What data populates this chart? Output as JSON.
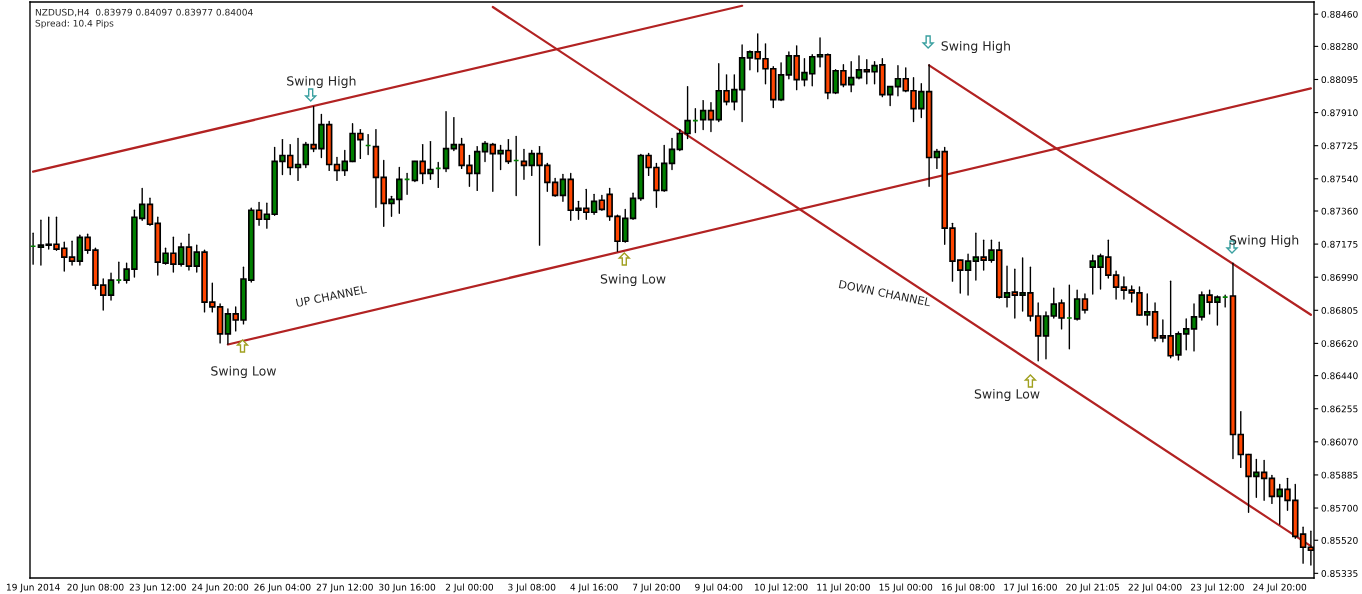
{
  "chart_data": {
    "type": "candlestick",
    "categories": [
      "19 Jun 2014",
      null,
      null,
      null,
      null,
      null,
      null,
      null,
      "20 Jun 08:00",
      null,
      null,
      null,
      null,
      null,
      null,
      null,
      "23 Jun 12:00",
      null,
      null,
      null,
      null,
      null,
      null,
      null,
      "24 Jun 20:00",
      null,
      null,
      null,
      null,
      null,
      null,
      null,
      "26 Jun 04:00",
      null,
      null,
      null,
      null,
      null,
      null,
      null,
      "27 Jun 12:00",
      null,
      null,
      null,
      null,
      null,
      null,
      null,
      "30 Jun 16:00",
      null,
      null,
      null,
      null,
      null,
      null,
      null,
      "2 Jul 00:00",
      null,
      null,
      null,
      null,
      null,
      null,
      null,
      "3 Jul 08:00",
      null,
      null,
      null,
      null,
      null,
      null,
      null,
      "4 Jul 16:00",
      null,
      null,
      null,
      null,
      null,
      null,
      null,
      "7 Jul 20:00",
      null,
      null,
      null,
      null,
      null,
      null,
      null,
      "9 Jul 04:00",
      null,
      null,
      null,
      null,
      null,
      null,
      null,
      "10 Jul 12:00",
      null,
      null,
      null,
      null,
      null,
      null,
      null,
      "11 Jul 20:00",
      null,
      null,
      null,
      null,
      null,
      null,
      null,
      "15 Jul 00:00",
      null,
      null,
      null,
      null,
      null,
      null,
      null,
      "16 Jul 08:00",
      null,
      null,
      null,
      null,
      null,
      null,
      null,
      "17 Jul 16:00",
      null,
      null,
      null,
      null,
      null,
      null,
      null,
      "20 Jul 21:05",
      null,
      null,
      null,
      null,
      null,
      null,
      null,
      "22 Jul 04:00",
      null,
      null,
      null,
      null,
      null,
      null,
      null,
      "23 Jul 12:00",
      null,
      null,
      null,
      null,
      null,
      null,
      null,
      "24 Jul 20:00",
      null,
      null,
      null,
      null
    ],
    "ohlc": [
      [
        0.87163,
        0.87236,
        0.87063,
        0.87163
      ],
      [
        0.87158,
        0.87308,
        0.87058,
        0.87169
      ],
      [
        0.87169,
        0.87325,
        0.87147,
        0.87174
      ],
      [
        0.87174,
        0.87325,
        0.87141,
        0.87147
      ],
      [
        0.87152,
        0.87186,
        0.87024,
        0.87102
      ],
      [
        0.87102,
        0.87191,
        0.87058,
        0.8708
      ],
      [
        0.8708,
        0.87225,
        0.87058,
        0.87213
      ],
      [
        0.87213,
        0.8723,
        0.87124,
        0.87141
      ],
      [
        0.87141,
        0.87152,
        0.86924,
        0.86946
      ],
      [
        0.86946,
        0.8698,
        0.86807,
        0.8689
      ],
      [
        0.8689,
        0.87013,
        0.86863,
        0.86974
      ],
      [
        0.86974,
        0.87074,
        0.86957,
        0.86974
      ],
      [
        0.86974,
        0.87069,
        0.86957,
        0.87035
      ],
      [
        0.87035,
        0.87364,
        0.86991,
        0.87325
      ],
      [
        0.87319,
        0.87486,
        0.87308,
        0.87397
      ],
      [
        0.87397,
        0.87431,
        0.8728,
        0.87286
      ],
      [
        0.87291,
        0.87325,
        0.87002,
        0.87074
      ],
      [
        0.87069,
        0.87152,
        0.87063,
        0.87124
      ],
      [
        0.87124,
        0.87213,
        0.87019,
        0.87063
      ],
      [
        0.87063,
        0.8718,
        0.87052,
        0.87158
      ],
      [
        0.87158,
        0.8723,
        0.8703,
        0.87052
      ],
      [
        0.87052,
        0.87169,
        0.87019,
        0.8713
      ],
      [
        0.8713,
        0.87141,
        0.86796,
        0.86851
      ],
      [
        0.86851,
        0.86957,
        0.86796,
        0.86824
      ],
      [
        0.86824,
        0.8684,
        0.86623,
        0.86673
      ],
      [
        0.86673,
        0.86812,
        0.86617,
        0.86785
      ],
      [
        0.86785,
        0.86824,
        0.8669,
        0.86751
      ],
      [
        0.86751,
        0.87046,
        0.86729,
        0.8698
      ],
      [
        0.86974,
        0.87375,
        0.86963,
        0.87364
      ],
      [
        0.87364,
        0.87408,
        0.8728,
        0.87314
      ],
      [
        0.87314,
        0.87403,
        0.87264,
        0.87342
      ],
      [
        0.87342,
        0.87715,
        0.87336,
        0.87637
      ],
      [
        0.87637,
        0.87759,
        0.87564,
        0.8767
      ],
      [
        0.8767,
        0.87731,
        0.87564,
        0.87603
      ],
      [
        0.87603,
        0.87765,
        0.87531,
        0.8762
      ],
      [
        0.8762,
        0.87743,
        0.87603,
        0.87731
      ],
      [
        0.87731,
        0.87943,
        0.87692,
        0.87709
      ],
      [
        0.87709,
        0.87899,
        0.87659,
        0.87843
      ],
      [
        0.87843,
        0.8786,
        0.87587,
        0.8762
      ],
      [
        0.8762,
        0.87659,
        0.87531,
        0.87587
      ],
      [
        0.87587,
        0.87698,
        0.87559,
        0.87637
      ],
      [
        0.87637,
        0.87848,
        0.87637,
        0.87793
      ],
      [
        0.87793,
        0.87815,
        0.87654,
        0.87759
      ],
      [
        0.87726,
        0.87787,
        0.87676,
        0.87726
      ],
      [
        0.8772,
        0.87815,
        0.87381,
        0.87548
      ],
      [
        0.87548,
        0.87642,
        0.87275,
        0.87403
      ],
      [
        0.87403,
        0.87442,
        0.8733,
        0.87425
      ],
      [
        0.87425,
        0.87603,
        0.87347,
        0.87537
      ],
      [
        0.87537,
        0.8757,
        0.87453,
        0.87537
      ],
      [
        0.87531,
        0.87637,
        0.87525,
        0.87637
      ],
      [
        0.87637,
        0.87731,
        0.87514,
        0.8757
      ],
      [
        0.8757,
        0.87748,
        0.87537,
        0.87592
      ],
      [
        0.87598,
        0.87631,
        0.87492,
        0.87598
      ],
      [
        0.87598,
        0.87915,
        0.87581,
        0.87709
      ],
      [
        0.87709,
        0.87882,
        0.87698,
        0.87731
      ],
      [
        0.87731,
        0.87765,
        0.87598,
        0.87615
      ],
      [
        0.87615,
        0.8767,
        0.87498,
        0.8757
      ],
      [
        0.8757,
        0.8772,
        0.87475,
        0.87692
      ],
      [
        0.87692,
        0.87748,
        0.87637,
        0.87737
      ],
      [
        0.87731,
        0.87737,
        0.8747,
        0.87681
      ],
      [
        0.87681,
        0.87726,
        0.87592,
        0.87698
      ],
      [
        0.87698,
        0.87759,
        0.87626,
        0.87637
      ],
      [
        0.87642,
        0.87776,
        0.87447,
        0.87642
      ],
      [
        0.87637,
        0.87704,
        0.87537,
        0.87615
      ],
      [
        0.87615,
        0.87698,
        0.87559,
        0.87681
      ],
      [
        0.87681,
        0.8772,
        0.87169,
        0.87615
      ],
      [
        0.87615,
        0.87626,
        0.8747,
        0.8752
      ],
      [
        0.8752,
        0.87542,
        0.87442,
        0.87447
      ],
      [
        0.87447,
        0.87564,
        0.87414,
        0.87537
      ],
      [
        0.87537,
        0.8757,
        0.87308,
        0.87364
      ],
      [
        0.87364,
        0.87414,
        0.87314,
        0.87375
      ],
      [
        0.87375,
        0.87481,
        0.87314,
        0.87353
      ],
      [
        0.87353,
        0.87453,
        0.87342,
        0.87414
      ],
      [
        0.8742,
        0.87447,
        0.87364,
        0.87369
      ],
      [
        0.87453,
        0.87486,
        0.87308,
        0.8733
      ],
      [
        0.8733,
        0.87336,
        0.87135,
        0.87191
      ],
      [
        0.87191,
        0.87369,
        0.87186,
        0.87319
      ],
      [
        0.87319,
        0.87459,
        0.87314,
        0.87431
      ],
      [
        0.87431,
        0.87676,
        0.8742,
        0.8767
      ],
      [
        0.8767,
        0.87681,
        0.87559,
        0.87603
      ],
      [
        0.87603,
        0.87626,
        0.87381,
        0.87475
      ],
      [
        0.87475,
        0.87726,
        0.8747,
        0.87626
      ],
      [
        0.87626,
        0.87765,
        0.87592,
        0.87704
      ],
      [
        0.87704,
        0.87815,
        0.87698,
        0.87793
      ],
      [
        0.87793,
        0.88055,
        0.87765,
        0.87865
      ],
      [
        0.87865,
        0.87932,
        0.87798,
        0.87865
      ],
      [
        0.87871,
        0.87977,
        0.87815,
        0.87921
      ],
      [
        0.87921,
        0.87965,
        0.87804,
        0.87871
      ],
      [
        0.87871,
        0.88183,
        0.8786,
        0.88032
      ],
      [
        0.88032,
        0.88121,
        0.87954,
        0.87971
      ],
      [
        0.87971,
        0.88121,
        0.87926,
        0.88038
      ],
      [
        0.88038,
        0.88288,
        0.8786,
        0.88216
      ],
      [
        0.88216,
        0.88255,
        0.88149,
        0.88249
      ],
      [
        0.88249,
        0.8835,
        0.88138,
        0.88211
      ],
      [
        0.88211,
        0.88294,
        0.88071,
        0.88155
      ],
      [
        0.88155,
        0.88166,
        0.87938,
        0.87982
      ],
      [
        0.87982,
        0.88188,
        0.87977,
        0.88121
      ],
      [
        0.88121,
        0.88249,
        0.88099,
        0.88227
      ],
      [
        0.88227,
        0.88283,
        0.88038,
        0.88094
      ],
      [
        0.88094,
        0.88211,
        0.8806,
        0.88133
      ],
      [
        0.88127,
        0.88233,
        0.8806,
        0.88222
      ],
      [
        0.88222,
        0.88327,
        0.88166,
        0.88233
      ],
      [
        0.88233,
        0.88238,
        0.87988,
        0.88021
      ],
      [
        0.88021,
        0.88149,
        0.88016,
        0.88144
      ],
      [
        0.88144,
        0.88177,
        0.88055,
        0.88066
      ],
      [
        0.88066,
        0.88194,
        0.88027,
        0.88105
      ],
      [
        0.88105,
        0.88227,
        0.88099,
        0.88149
      ],
      [
        0.88149,
        0.88205,
        0.88071,
        0.88138
      ],
      [
        0.88138,
        0.88194,
        0.88071,
        0.88172
      ],
      [
        0.88177,
        0.88211,
        0.87999,
        0.8801
      ],
      [
        0.8801,
        0.88055,
        0.87949,
        0.88055
      ],
      [
        0.88055,
        0.88172,
        0.88004,
        0.88099
      ],
      [
        0.88099,
        0.8816,
        0.88027,
        0.88032
      ],
      [
        0.88032,
        0.88105,
        0.8786,
        0.87932
      ],
      [
        0.87932,
        0.88071,
        0.87882,
        0.88027
      ],
      [
        0.88027,
        0.88177,
        0.87498,
        0.87659
      ],
      [
        0.87659,
        0.87704,
        0.87598,
        0.87692
      ],
      [
        0.87692,
        0.87715,
        0.87174,
        0.87264
      ],
      [
        0.87264,
        0.87291,
        0.86968,
        0.8708
      ],
      [
        0.87085,
        0.87085,
        0.86902,
        0.8703
      ],
      [
        0.8703,
        0.87119,
        0.8689,
        0.8708
      ],
      [
        0.8708,
        0.87236,
        0.86974,
        0.87102
      ],
      [
        0.87102,
        0.87197,
        0.8703,
        0.87085
      ],
      [
        0.87085,
        0.87197,
        0.87074,
        0.87141
      ],
      [
        0.87141,
        0.87186,
        0.86874,
        0.86879
      ],
      [
        0.86879,
        0.87052,
        0.86824,
        0.86902
      ],
      [
        0.86907,
        0.87035,
        0.86762,
        0.8689
      ],
      [
        0.8689,
        0.87097,
        0.86801,
        0.86902
      ],
      [
        0.86902,
        0.87046,
        0.86746,
        0.86773
      ],
      [
        0.86773,
        0.86846,
        0.86523,
        0.86662
      ],
      [
        0.86662,
        0.86796,
        0.86534,
        0.86773
      ],
      [
        0.86773,
        0.86929,
        0.86762,
        0.8684
      ],
      [
        0.86846,
        0.86863,
        0.86701,
        0.86762
      ],
      [
        0.86762,
        0.86946,
        0.8659,
        0.86762
      ],
      [
        0.86757,
        0.86918,
        0.86751,
        0.86868
      ],
      [
        0.86868,
        0.86896,
        0.8679,
        0.86807
      ],
      [
        0.87046,
        0.87113,
        0.86896,
        0.8708
      ],
      [
        0.87046,
        0.87119,
        0.86924,
        0.87108
      ],
      [
        0.87102,
        0.87197,
        0.86985,
        0.87002
      ],
      [
        0.87002,
        0.87024,
        0.86868,
        0.86935
      ],
      [
        0.86935,
        0.86991,
        0.86868,
        0.86918
      ],
      [
        0.86918,
        0.86941,
        0.86851,
        0.86902
      ],
      [
        0.86902,
        0.86935,
        0.86779,
        0.86779
      ],
      [
        0.86779,
        0.86896,
        0.86723,
        0.86796
      ],
      [
        0.86796,
        0.86846,
        0.86634,
        0.86651
      ],
      [
        0.86662,
        0.86751,
        0.86629,
        0.86651
      ],
      [
        0.86662,
        0.86968,
        0.8654,
        0.86551
      ],
      [
        0.86556,
        0.86684,
        0.86528,
        0.86673
      ],
      [
        0.86673,
        0.86757,
        0.86584,
        0.86701
      ],
      [
        0.86701,
        0.8684,
        0.86578,
        0.86768
      ],
      [
        0.86768,
        0.86907,
        0.86751,
        0.8689
      ],
      [
        0.8689,
        0.86918,
        0.86785,
        0.86851
      ],
      [
        0.86851,
        0.86885,
        0.86723,
        0.86879
      ],
      [
        0.86879,
        0.8689,
        0.86824,
        0.86879
      ],
      [
        0.86885,
        0.87069,
        0.85977,
        0.86111
      ],
      [
        0.86111,
        0.86239,
        0.85927,
        0.85999
      ],
      [
        0.85999,
        0.85999,
        0.85676,
        0.85877
      ],
      [
        0.85877,
        0.85971,
        0.8576,
        0.85899
      ],
      [
        0.85899,
        0.85966,
        0.85743,
        0.85866
      ],
      [
        0.85866,
        0.85882,
        0.85726,
        0.85765
      ],
      [
        0.85765,
        0.85832,
        0.85609,
        0.85804
      ],
      [
        0.85804,
        0.85866,
        0.85687,
        0.85743
      ],
      [
        0.85743,
        0.85832,
        0.85531,
        0.85542
      ],
      [
        0.85554,
        0.85593,
        0.85392,
        0.85481
      ],
      [
        0.85481,
        0.8557,
        0.85381,
        0.85464
      ]
    ],
    "colors": [
      "#008000",
      "#008000",
      "#008000",
      "#ff4500",
      "#ff4500",
      "#ff4500",
      "#008000",
      "#ff4500",
      "#ff4500",
      "#ff4500",
      "#008000",
      "#008000",
      "#008000",
      "#008000",
      "#008000",
      "#ff4500",
      "#ff4500",
      "#008000",
      "#ff4500",
      "#008000",
      "#ff4500",
      "#008000",
      "#ff4500",
      "#ff4500",
      "#ff4500",
      "#008000",
      "#ff4500",
      "#008000",
      "#008000",
      "#ff4500",
      "#008000",
      "#008000",
      "#008000",
      "#ff4500",
      "#008000",
      "#008000",
      "#ff4500",
      "#008000",
      "#ff4500",
      "#ff4500",
      "#008000",
      "#008000",
      "#ff4500",
      "#008000",
      "#ff4500",
      "#ff4500",
      "#008000",
      "#008000",
      "#008000",
      "#008000",
      "#ff4500",
      "#008000",
      "#008000",
      "#008000",
      "#008000",
      "#ff4500",
      "#ff4500",
      "#008000",
      "#008000",
      "#ff4500",
      "#008000",
      "#ff4500",
      "#008000",
      "#ff4500",
      "#008000",
      "#ff4500",
      "#ff4500",
      "#ff4500",
      "#008000",
      "#ff4500",
      "#008000",
      "#ff4500",
      "#008000",
      "#ff4500",
      "#ff4500",
      "#ff4500",
      "#008000",
      "#008000",
      "#008000",
      "#ff4500",
      "#ff4500",
      "#008000",
      "#008000",
      "#008000",
      "#008000",
      "#008000",
      "#008000",
      "#ff4500",
      "#008000",
      "#ff4500",
      "#008000",
      "#008000",
      "#008000",
      "#ff4500",
      "#ff4500",
      "#ff4500",
      "#008000",
      "#008000",
      "#ff4500",
      "#008000",
      "#008000",
      "#008000",
      "#ff4500",
      "#008000",
      "#ff4500",
      "#008000",
      "#008000",
      "#ff4500",
      "#008000",
      "#ff4500",
      "#008000",
      "#008000",
      "#ff4500",
      "#ff4500",
      "#008000",
      "#ff4500",
      "#008000",
      "#ff4500",
      "#ff4500",
      "#ff4500",
      "#008000",
      "#008000",
      "#ff4500",
      "#008000",
      "#ff4500",
      "#008000",
      "#ff4500",
      "#008000",
      "#ff4500",
      "#ff4500",
      "#008000",
      "#008000",
      "#ff4500",
      "#008000",
      "#008000",
      "#ff4500",
      "#008000",
      "#008000",
      "#ff4500",
      "#ff4500",
      "#ff4500",
      "#ff4500",
      "#ff4500",
      "#008000",
      "#ff4500",
      "#ff4500",
      "#ff4500",
      "#008000",
      "#008000",
      "#008000",
      "#008000",
      "#ff4500",
      "#008000",
      "#008000",
      "#ff4500",
      "#ff4500",
      "#ff4500",
      "#008000",
      "#ff4500",
      "#ff4500",
      "#008000",
      "#ff4500",
      "#ff4500",
      "#ff4500",
      "#ff4500"
    ],
    "series": [
      {
        "type": "line",
        "color": "#b22222",
        "values": [
          0.8758,
          null,
          null,
          null,
          null,
          null,
          null,
          null,
          null,
          null,
          null,
          null,
          null,
          null,
          null,
          null,
          null,
          null,
          null,
          null,
          null,
          null,
          null,
          null,
          null,
          null,
          null,
          null,
          null,
          null,
          null,
          null,
          null,
          null,
          null,
          null,
          null,
          null,
          null,
          null,
          null,
          null,
          null,
          null,
          null,
          null,
          null,
          null,
          null,
          null,
          null,
          null,
          null,
          null,
          null,
          null,
          null,
          null,
          null,
          null,
          null,
          null,
          null,
          null,
          null,
          null,
          null,
          null,
          null,
          null,
          null,
          null,
          null,
          null,
          null,
          null,
          null,
          null,
          null,
          null,
          null,
          null,
          null,
          null,
          null,
          null,
          null,
          null,
          null,
          null,
          null,
          0.88507,
          null,
          null,
          null,
          null,
          null,
          null,
          null,
          null,
          null,
          null,
          null,
          null,
          null,
          null,
          null,
          null,
          null,
          null,
          null,
          null,
          null,
          null,
          null,
          null,
          null,
          null,
          null,
          null,
          null,
          null,
          null,
          null,
          null,
          null,
          null,
          null,
          null,
          null,
          null,
          null,
          null,
          null,
          null,
          null,
          null,
          null,
          null,
          null,
          null,
          null,
          null,
          null,
          null,
          null,
          null,
          null,
          null,
          null,
          null,
          null,
          null,
          null,
          null,
          null,
          null,
          null,
          null,
          null,
          null,
          null,
          null,
          null,
          null
        ]
      },
      {
        "type": "line",
        "color": "#b22222",
        "values": [
          null,
          null,
          null,
          null,
          null,
          null,
          null,
          null,
          null,
          null,
          null,
          null,
          null,
          null,
          null,
          null,
          null,
          null,
          null,
          null,
          null,
          null,
          null,
          null,
          null,
          0.86614,
          null,
          null,
          null,
          null,
          null,
          null,
          null,
          null,
          null,
          null,
          null,
          null,
          null,
          null,
          null,
          null,
          null,
          null,
          null,
          null,
          null,
          null,
          null,
          null,
          null,
          null,
          null,
          null,
          null,
          null,
          null,
          null,
          null,
          null,
          null,
          null,
          null,
          null,
          null,
          null,
          null,
          null,
          null,
          null,
          null,
          null,
          null,
          null,
          null,
          null,
          null,
          null,
          null,
          null,
          null,
          null,
          null,
          null,
          null,
          null,
          null,
          null,
          null,
          null,
          null,
          null,
          null,
          null,
          null,
          null,
          null,
          null,
          null,
          null,
          null,
          null,
          null,
          null,
          null,
          null,
          null,
          null,
          null,
          null,
          null,
          null,
          null,
          null,
          null,
          null,
          null,
          null,
          null,
          null,
          null,
          null,
          null,
          null,
          null,
          null,
          null,
          null,
          null,
          null,
          null,
          null,
          null,
          null,
          null,
          null,
          null,
          null,
          null,
          null,
          null,
          null,
          null,
          null,
          null,
          null,
          null,
          null,
          null,
          null,
          null,
          null,
          null,
          null,
          null,
          null,
          null,
          null,
          null,
          null,
          null,
          null,
          null,
          null,
          0.88045
        ]
      },
      {
        "type": "line",
        "color": "#b22222",
        "values": [
          null,
          null,
          null,
          null,
          null,
          null,
          null,
          null,
          null,
          null,
          null,
          null,
          null,
          null,
          null,
          null,
          null,
          null,
          null,
          null,
          null,
          null,
          null,
          null,
          null,
          null,
          null,
          null,
          null,
          null,
          null,
          null,
          null,
          null,
          null,
          null,
          null,
          null,
          null,
          null,
          null,
          null,
          null,
          null,
          null,
          null,
          null,
          null,
          null,
          null,
          null,
          null,
          null,
          null,
          null,
          null,
          null,
          null,
          null,
          0.885,
          null,
          null,
          null,
          null,
          null,
          null,
          null,
          null,
          null,
          null,
          null,
          null,
          null,
          null,
          null,
          null,
          null,
          null,
          null,
          null,
          null,
          null,
          null,
          null,
          null,
          null,
          null,
          null,
          null,
          null,
          null,
          null,
          null,
          null,
          null,
          null,
          null,
          null,
          null,
          null,
          null,
          null,
          null,
          null,
          null,
          null,
          null,
          null,
          null,
          null,
          null,
          null,
          null,
          null,
          null,
          null,
          null,
          null,
          null,
          null,
          null,
          null,
          null,
          null,
          null,
          null,
          null,
          null,
          null,
          null,
          null,
          null,
          null,
          null,
          null,
          null,
          null,
          null,
          null,
          null,
          null,
          null,
          null,
          null,
          null,
          null,
          null,
          null,
          null,
          null,
          null,
          null,
          null,
          null,
          null,
          null,
          null,
          null,
          null,
          null,
          null,
          null,
          null,
          null,
          0.85487
        ]
      },
      {
        "type": "line",
        "color": "#b22222",
        "values": [
          null,
          null,
          null,
          null,
          null,
          null,
          null,
          null,
          null,
          null,
          null,
          null,
          null,
          null,
          null,
          null,
          null,
          null,
          null,
          null,
          null,
          null,
          null,
          null,
          null,
          null,
          null,
          null,
          null,
          null,
          null,
          null,
          null,
          null,
          null,
          null,
          null,
          null,
          null,
          null,
          null,
          null,
          null,
          null,
          null,
          null,
          null,
          null,
          null,
          null,
          null,
          null,
          null,
          null,
          null,
          null,
          null,
          null,
          null,
          null,
          null,
          null,
          null,
          null,
          null,
          null,
          null,
          null,
          null,
          null,
          null,
          null,
          null,
          null,
          null,
          null,
          null,
          null,
          null,
          null,
          null,
          null,
          null,
          null,
          null,
          null,
          null,
          null,
          null,
          null,
          null,
          null,
          null,
          null,
          null,
          null,
          null,
          null,
          null,
          null,
          null,
          null,
          null,
          null,
          null,
          null,
          null,
          null,
          null,
          null,
          null,
          null,
          null,
          null,
          null,
          0.88174,
          null,
          null,
          null,
          null,
          null,
          null,
          null,
          null,
          null,
          null,
          null,
          null,
          null,
          null,
          null,
          null,
          null,
          null,
          null,
          null,
          null,
          null,
          null,
          null,
          null,
          null,
          null,
          null,
          null,
          null,
          null,
          null,
          null,
          null,
          null,
          null,
          null,
          null,
          null,
          null,
          null,
          null,
          null,
          null,
          null,
          null,
          null,
          null,
          0.8678
        ]
      }
    ],
    "ylim": [
      0.85309,
      0.88528
    ],
    "yticks": [
      {
        "value": 0.8846,
        "label": "0.88460"
      },
      {
        "value": 0.8828,
        "label": "0.88280"
      },
      0.88095,
      {
        "value": 0.8791,
        "label": "0.87910"
      },
      0.87725,
      {
        "value": 0.8754,
        "label": "0.87540"
      },
      {
        "value": 0.8736,
        "label": "0.87360"
      },
      0.87175,
      {
        "value": 0.8699,
        "label": "0.86990"
      },
      0.86805,
      {
        "value": 0.8662,
        "label": "0.86620"
      },
      {
        "value": 0.8644,
        "label": "0.86440"
      },
      0.86255,
      {
        "value": 0.8607,
        "label": "0.86070"
      },
      0.85885,
      {
        "value": 0.857,
        "label": "0.85700"
      },
      {
        "value": 0.8552,
        "label": "0.85520"
      },
      0.85335
    ],
    "grid": false,
    "legend": false,
    "annotations": [
      "NZDUSD,H4  0.83979 0.84097 0.83977 0.84004",
      "Spread: 10.4 Pips",
      "Swing High",
      "Swing Low",
      "Swing Low",
      "Swing High",
      "Swing Low",
      "Swing High",
      "UP CHANNEL",
      "DOWN CHANNEL"
    ]
  }
}
